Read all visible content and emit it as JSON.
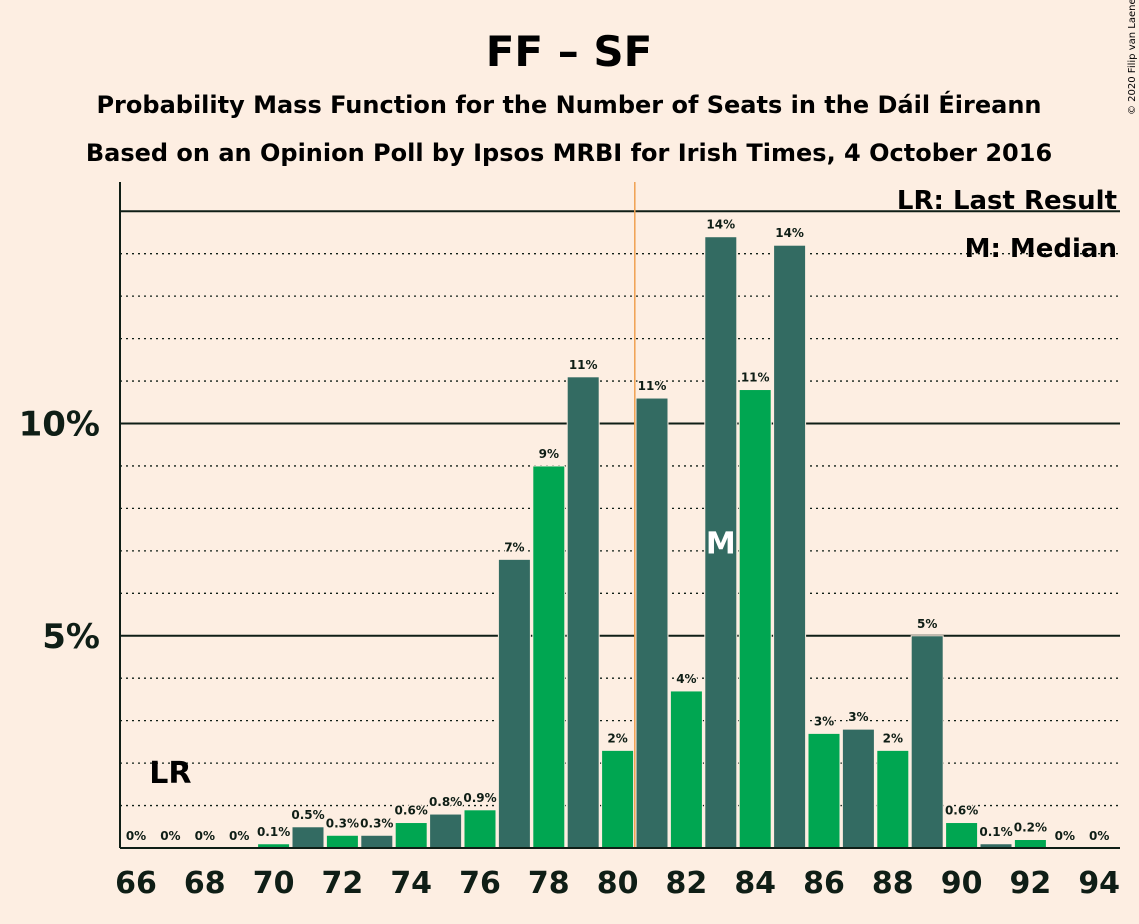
{
  "title": "FF – SF",
  "subtitle1": "Probability Mass Function for the Number of Seats in the Dáil Éireann",
  "subtitle2": "Based on an Opinion Poll by Ipsos MRBI for Irish Times, 4 October 2016",
  "copyright": "© 2020 Filip van Laenen",
  "legend": {
    "lr": "LR: Last Result",
    "median": "M: Median"
  },
  "markers": {
    "lr_label": "LR",
    "median_label": "M"
  },
  "colors": {
    "background": "#FDEEE2",
    "bar_dark": "#336B62",
    "bar_green": "#00A651",
    "majority_line": "#F0A050",
    "text": "#0F1E16"
  },
  "chart_data": {
    "type": "bar",
    "x": [
      66,
      67,
      68,
      69,
      70,
      71,
      72,
      73,
      74,
      75,
      76,
      77,
      78,
      79,
      80,
      81,
      82,
      83,
      84,
      85,
      86,
      87,
      88,
      89,
      90,
      91,
      92,
      93,
      94
    ],
    "values": [
      0,
      0,
      0,
      0,
      0.1,
      0.5,
      0.3,
      0.3,
      0.6,
      0.8,
      0.9,
      6.8,
      9.0,
      11.1,
      2.3,
      10.6,
      3.7,
      14.4,
      10.8,
      14.2,
      2.7,
      2.8,
      2.3,
      5.0,
      0.6,
      0.1,
      0.2,
      0,
      0
    ],
    "data_labels": [
      "0%",
      "0%",
      "0%",
      "0%",
      "0.1%",
      "0.5%",
      "0.3%",
      "0.3%",
      "0.6%",
      "0.8%",
      "0.9%",
      "7%",
      "9%",
      "11%",
      "2%",
      "11%",
      "4%",
      "14%",
      "11%",
      "14%",
      "3%",
      "3%",
      "2%",
      "5%",
      "0.6%",
      "0.1%",
      "0.2%",
      "0%",
      "0%"
    ],
    "x_tick_labels": [
      "66",
      "68",
      "70",
      "72",
      "74",
      "76",
      "78",
      "80",
      "82",
      "84",
      "86",
      "88",
      "90",
      "92",
      "94"
    ],
    "y_tick_labels": [
      "5%",
      "10%"
    ],
    "ylim": [
      0,
      15.7
    ],
    "last_result": 67,
    "median": 83,
    "majority_threshold": 80.5,
    "grid": "dotted at every 1%, solid at 5% and 10%"
  }
}
